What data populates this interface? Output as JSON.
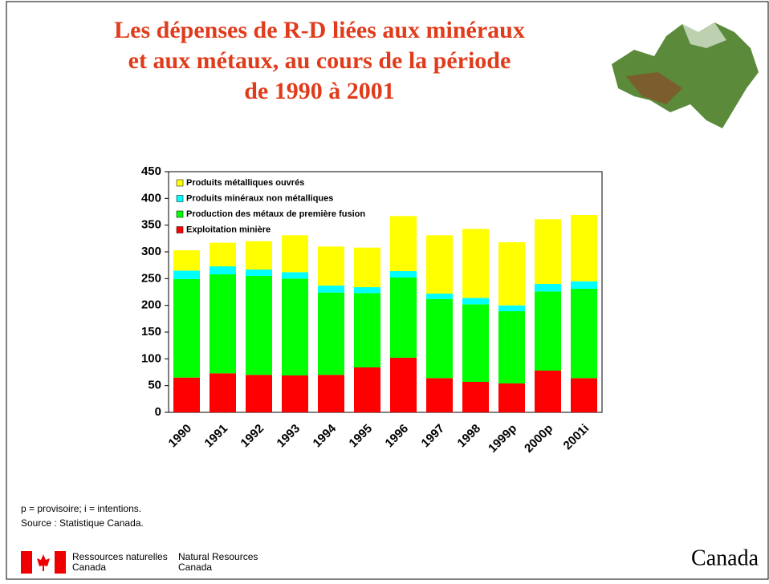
{
  "chart_data": {
    "type": "stacked_bar",
    "title": [
      "Les dépenses de R-D liées aux minéraux",
      "et aux métaux, au cours de la période",
      "de 1990 à 2001"
    ],
    "categories": [
      "1990",
      "1991",
      "1992",
      "1993",
      "1994",
      "1995",
      "1996",
      "1997",
      "1998",
      "1999p",
      "2000p",
      "2001i"
    ],
    "series": [
      {
        "name": "Exploitation minière",
        "color": "#ff0000",
        "values": [
          65,
          73,
          70,
          69,
          70,
          84,
          102,
          64,
          57,
          54,
          78,
          64
        ]
      },
      {
        "name": "Production des métaux de première fusion",
        "color": "#00ff00",
        "values": [
          184,
          185,
          185,
          181,
          154,
          139,
          150,
          148,
          145,
          135,
          148,
          167
        ]
      },
      {
        "name": "Produits minéraux non métalliques",
        "color": "#00ffff",
        "values": [
          16,
          15,
          12,
          12,
          13,
          11,
          12,
          10,
          12,
          11,
          14,
          14
        ]
      },
      {
        "name": "Produits métalliques ouvrés",
        "color": "#ffff00",
        "values": [
          38,
          44,
          53,
          69,
          73,
          74,
          103,
          109,
          129,
          118,
          121,
          124
        ]
      }
    ],
    "ylim": [
      0,
      450
    ],
    "yticks": [
      0,
      50,
      100,
      150,
      200,
      250,
      300,
      350,
      400,
      450
    ],
    "legend": "upper left"
  },
  "notes": [
    "p = provisoire; i = intentions.",
    "Source : Statistique Canada."
  ],
  "footer": {
    "fr": [
      "Ressources naturelles",
      "Canada"
    ],
    "en": [
      "Natural Resources",
      "Canada"
    ],
    "wordmark": "Canada"
  }
}
